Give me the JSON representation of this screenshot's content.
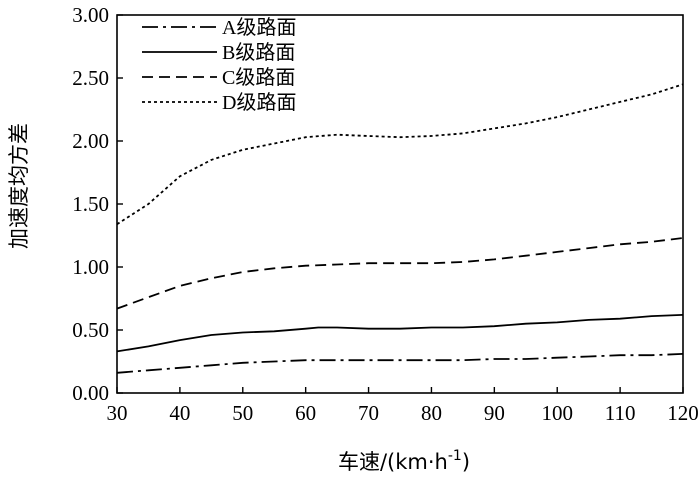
{
  "chart_data": {
    "type": "line",
    "title": "",
    "xlabel": "车速/(km·h",
    "xlabel_superscript": "-1",
    "xlabel_suffix": ")",
    "ylabel": "加速度均方差",
    "xlim": [
      30,
      120
    ],
    "ylim": [
      0,
      3
    ],
    "x_ticks": [
      30,
      40,
      50,
      60,
      70,
      80,
      90,
      100,
      110,
      120
    ],
    "y_ticks": [
      "0.00",
      "0.50",
      "1.00",
      "1.50",
      "2.00",
      "2.50",
      "3.00"
    ],
    "grid": false,
    "legend_position": "top-left",
    "series": [
      {
        "name": "A级路面",
        "dash": "dash-dot",
        "points": [
          [
            30,
            0.16
          ],
          [
            35,
            0.18
          ],
          [
            40,
            0.2
          ],
          [
            45,
            0.22
          ],
          [
            50,
            0.24
          ],
          [
            55,
            0.25
          ],
          [
            60,
            0.26
          ],
          [
            65,
            0.26
          ],
          [
            70,
            0.26
          ],
          [
            75,
            0.26
          ],
          [
            80,
            0.26
          ],
          [
            85,
            0.26
          ],
          [
            90,
            0.27
          ],
          [
            95,
            0.27
          ],
          [
            100,
            0.28
          ],
          [
            105,
            0.29
          ],
          [
            110,
            0.3
          ],
          [
            115,
            0.3
          ],
          [
            120,
            0.31
          ]
        ]
      },
      {
        "name": "B级路面",
        "dash": "solid",
        "points": [
          [
            30,
            0.33
          ],
          [
            35,
            0.37
          ],
          [
            40,
            0.42
          ],
          [
            45,
            0.46
          ],
          [
            50,
            0.48
          ],
          [
            55,
            0.49
          ],
          [
            60,
            0.51
          ],
          [
            62,
            0.52
          ],
          [
            65,
            0.52
          ],
          [
            70,
            0.51
          ],
          [
            75,
            0.51
          ],
          [
            80,
            0.52
          ],
          [
            85,
            0.52
          ],
          [
            90,
            0.53
          ],
          [
            95,
            0.55
          ],
          [
            100,
            0.56
          ],
          [
            105,
            0.58
          ],
          [
            110,
            0.59
          ],
          [
            115,
            0.61
          ],
          [
            120,
            0.62
          ]
        ]
      },
      {
        "name": "C级路面",
        "dash": "dashed",
        "points": [
          [
            30,
            0.67
          ],
          [
            35,
            0.76
          ],
          [
            40,
            0.85
          ],
          [
            45,
            0.91
          ],
          [
            50,
            0.96
          ],
          [
            55,
            0.99
          ],
          [
            60,
            1.01
          ],
          [
            65,
            1.02
          ],
          [
            70,
            1.03
          ],
          [
            75,
            1.03
          ],
          [
            80,
            1.03
          ],
          [
            85,
            1.04
          ],
          [
            90,
            1.06
          ],
          [
            95,
            1.09
          ],
          [
            100,
            1.12
          ],
          [
            105,
            1.15
          ],
          [
            110,
            1.18
          ],
          [
            115,
            1.2
          ],
          [
            120,
            1.23
          ]
        ]
      },
      {
        "name": "D级路面",
        "dash": "dotted",
        "points": [
          [
            30,
            1.34
          ],
          [
            35,
            1.5
          ],
          [
            40,
            1.72
          ],
          [
            45,
            1.85
          ],
          [
            50,
            1.93
          ],
          [
            55,
            1.98
          ],
          [
            60,
            2.03
          ],
          [
            65,
            2.05
          ],
          [
            70,
            2.04
          ],
          [
            75,
            2.03
          ],
          [
            80,
            2.04
          ],
          [
            85,
            2.06
          ],
          [
            90,
            2.1
          ],
          [
            95,
            2.14
          ],
          [
            100,
            2.19
          ],
          [
            105,
            2.25
          ],
          [
            110,
            2.31
          ],
          [
            115,
            2.37
          ],
          [
            120,
            2.45
          ]
        ]
      }
    ]
  }
}
